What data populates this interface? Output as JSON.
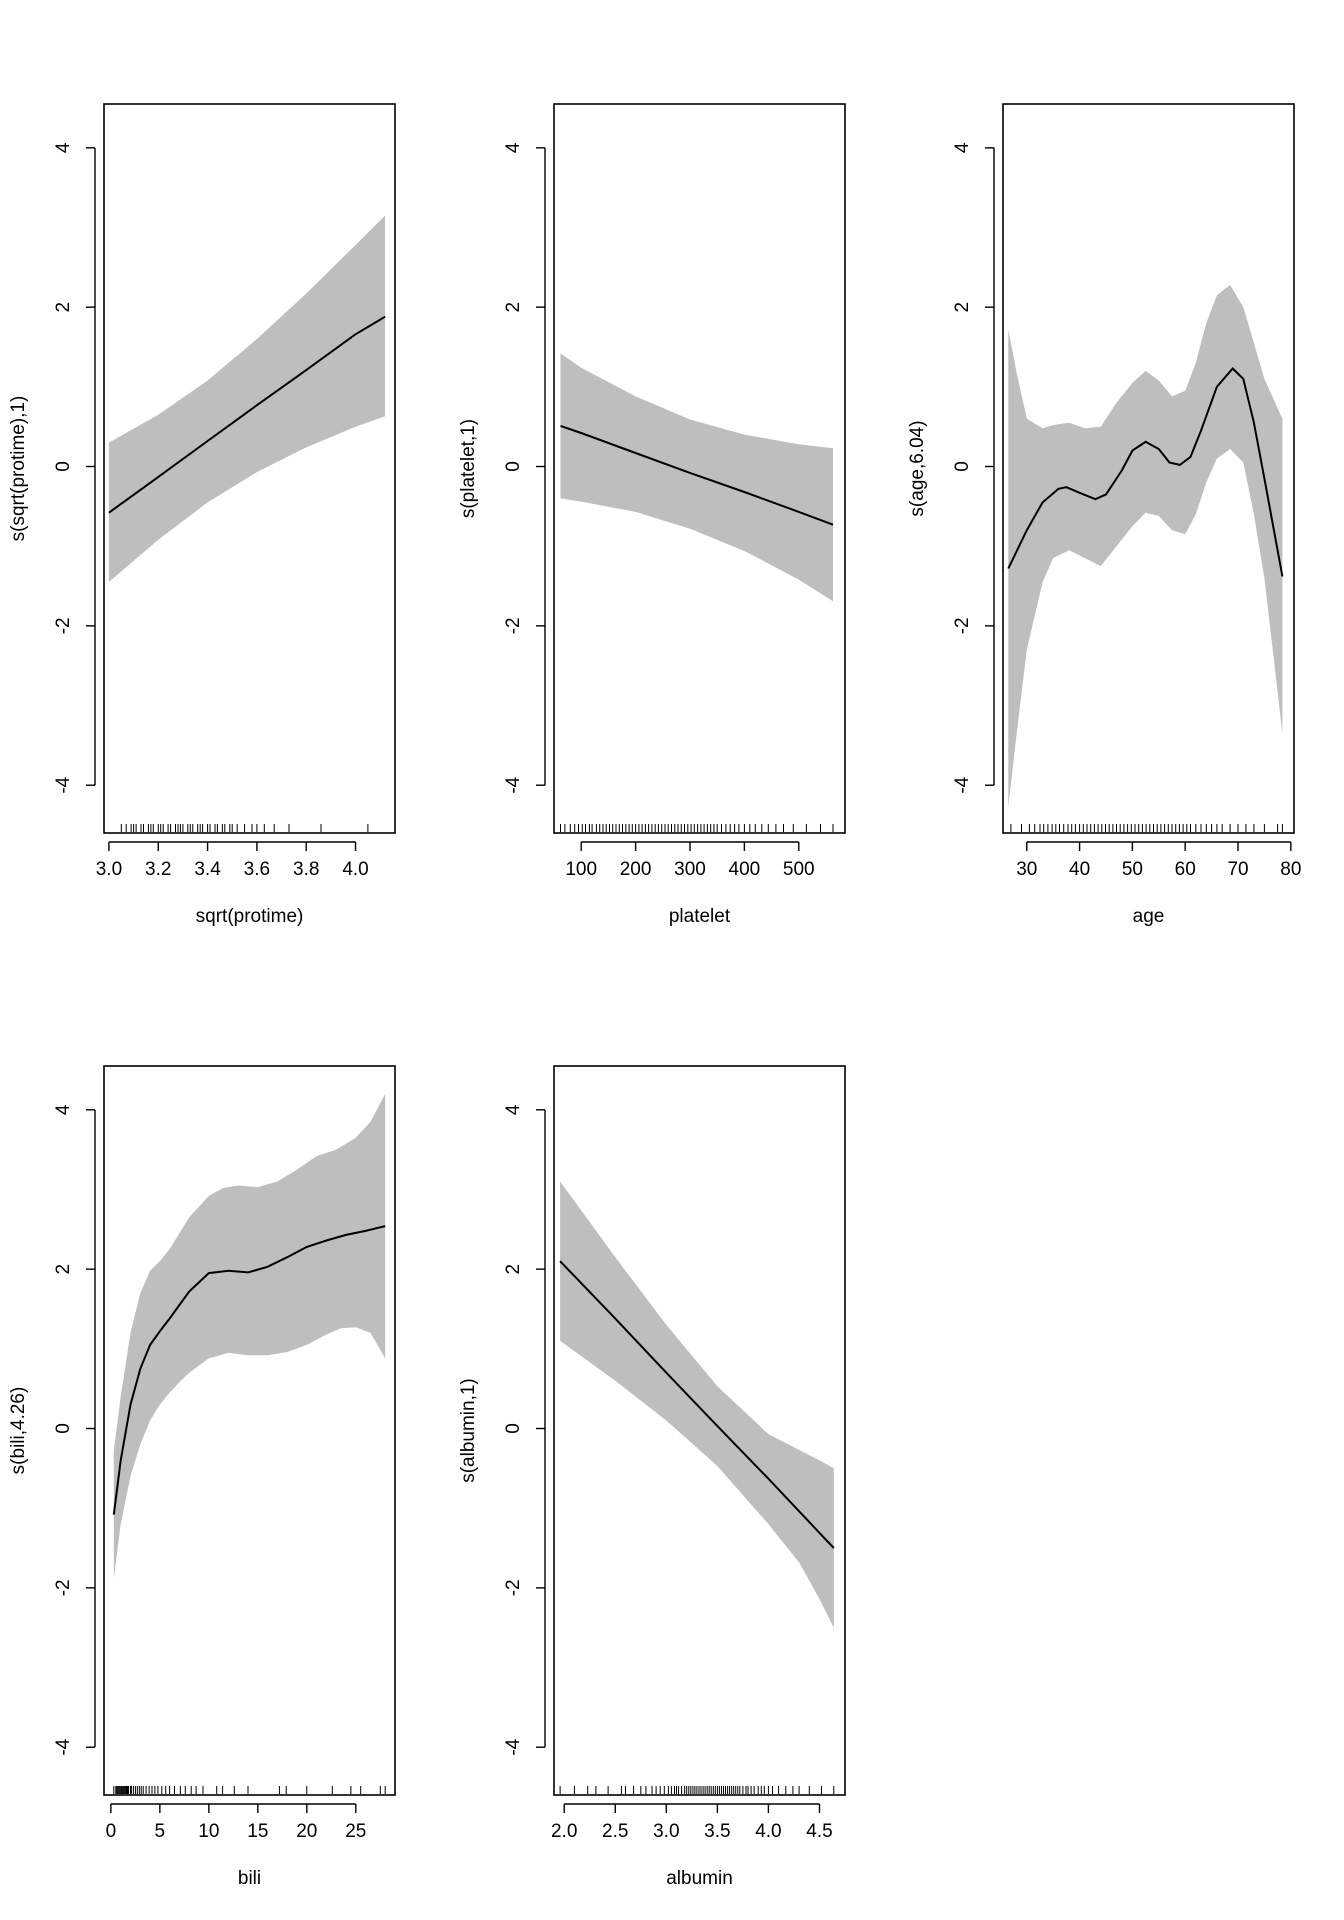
{
  "chart_data": [
    {
      "type": "line",
      "title": "",
      "xlabel": "sqrt(protime)",
      "ylabel": "s(sqrt(protime),1)",
      "xlim": [
        2.98,
        4.16
      ],
      "ylim": [
        -4.6,
        4.55
      ],
      "x_ticks": [
        3.0,
        3.2,
        3.4,
        3.6,
        3.8,
        4.0
      ],
      "x_tick_labels": [
        "3.0",
        "3.2",
        "3.4",
        "3.6",
        "3.8",
        "4.0"
      ],
      "y_ticks": [
        -4,
        -2,
        0,
        2,
        4
      ],
      "y_tick_labels": [
        "-4",
        "-2",
        "0",
        "2",
        "4"
      ],
      "series": [
        {
          "name": "fit",
          "x": [
            3.0,
            3.2,
            3.4,
            3.6,
            3.8,
            4.0,
            4.12
          ],
          "values": [
            -0.58,
            -0.13,
            0.32,
            0.77,
            1.21,
            1.66,
            1.88
          ]
        },
        {
          "name": "upper",
          "x": [
            3.0,
            3.2,
            3.4,
            3.6,
            3.8,
            4.0,
            4.12
          ],
          "values": [
            0.3,
            0.65,
            1.08,
            1.6,
            2.17,
            2.78,
            3.15
          ]
        },
        {
          "name": "lower",
          "x": [
            3.0,
            3.2,
            3.4,
            3.6,
            3.8,
            4.0,
            4.12
          ],
          "values": [
            -1.45,
            -0.92,
            -0.45,
            -0.07,
            0.24,
            0.5,
            0.63
          ]
        }
      ],
      "rug": [
        3.05,
        3.07,
        3.09,
        3.1,
        3.11,
        3.13,
        3.14,
        3.16,
        3.17,
        3.18,
        3.2,
        3.21,
        3.22,
        3.24,
        3.25,
        3.27,
        3.28,
        3.29,
        3.3,
        3.32,
        3.33,
        3.34,
        3.36,
        3.37,
        3.38,
        3.4,
        3.41,
        3.43,
        3.44,
        3.46,
        3.47,
        3.49,
        3.5,
        3.52,
        3.55,
        3.58,
        3.6,
        3.63,
        3.67,
        3.73,
        3.86,
        4.05
      ]
    },
    {
      "type": "line",
      "title": "",
      "xlabel": "platelet",
      "ylabel": "s(platelet,1)",
      "xlim": [
        50,
        585
      ],
      "ylim": [
        -4.6,
        4.55
      ],
      "x_ticks": [
        100,
        200,
        300,
        400,
        500
      ],
      "x_tick_labels": [
        "100",
        "200",
        "300",
        "400",
        "500"
      ],
      "y_ticks": [
        -4,
        -2,
        0,
        2,
        4
      ],
      "y_tick_labels": [
        "-4",
        "-2",
        "0",
        "2",
        "4"
      ],
      "series": [
        {
          "name": "fit",
          "x": [
            62,
            100,
            200,
            300,
            400,
            500,
            563
          ],
          "values": [
            0.51,
            0.42,
            0.17,
            -0.08,
            -0.32,
            -0.57,
            -0.73
          ]
        },
        {
          "name": "upper",
          "x": [
            62,
            100,
            200,
            300,
            400,
            500,
            563
          ],
          "values": [
            1.42,
            1.24,
            0.88,
            0.59,
            0.4,
            0.28,
            0.23
          ]
        },
        {
          "name": "lower",
          "x": [
            62,
            100,
            200,
            300,
            400,
            500,
            563
          ],
          "values": [
            -0.4,
            -0.44,
            -0.57,
            -0.78,
            -1.06,
            -1.42,
            -1.69
          ]
        }
      ],
      "rug": [
        62,
        70,
        80,
        88,
        95,
        102,
        108,
        115,
        120,
        128,
        134,
        140,
        146,
        152,
        158,
        164,
        170,
        176,
        182,
        188,
        194,
        200,
        206,
        212,
        218,
        224,
        230,
        236,
        242,
        248,
        254,
        260,
        266,
        272,
        278,
        284,
        290,
        296,
        302,
        308,
        314,
        320,
        326,
        332,
        338,
        344,
        350,
        358,
        366,
        374,
        382,
        390,
        400,
        410,
        420,
        432,
        444,
        458,
        472,
        490,
        514,
        540,
        563
      ]
    },
    {
      "type": "line",
      "title": "",
      "xlabel": "age",
      "ylabel": "s(age,6.04)",
      "xlim": [
        25.5,
        80.6
      ],
      "ylim": [
        -4.6,
        4.55
      ],
      "x_ticks": [
        30,
        40,
        50,
        60,
        70,
        80
      ],
      "x_tick_labels": [
        "30",
        "40",
        "50",
        "60",
        "70",
        "80"
      ],
      "y_ticks": [
        -4,
        -2,
        0,
        2,
        4
      ],
      "y_tick_labels": [
        "-4",
        "-2",
        "0",
        "2",
        "4"
      ],
      "series": [
        {
          "name": "fit",
          "x": [
            26.5,
            30,
            33,
            36,
            37.5,
            40,
            43,
            45,
            48,
            50,
            52.5,
            55,
            57,
            59,
            61,
            63,
            66,
            69,
            71,
            73,
            75,
            78.4
          ],
          "values": [
            -1.28,
            -0.8,
            -0.45,
            -0.28,
            -0.26,
            -0.33,
            -0.41,
            -0.35,
            -0.05,
            0.2,
            0.31,
            0.22,
            0.05,
            0.02,
            0.12,
            0.45,
            1.0,
            1.23,
            1.1,
            0.55,
            -0.15,
            -1.38
          ]
        },
        {
          "name": "upper",
          "x": [
            26.5,
            28,
            30,
            33,
            35,
            38,
            41,
            44,
            47,
            50,
            52.5,
            55,
            57.5,
            60,
            62,
            64,
            66,
            68.5,
            71,
            73,
            75,
            78.4
          ],
          "values": [
            1.72,
            1.2,
            0.6,
            0.48,
            0.52,
            0.55,
            0.48,
            0.5,
            0.8,
            1.05,
            1.2,
            1.08,
            0.88,
            0.95,
            1.3,
            1.8,
            2.15,
            2.28,
            2.0,
            1.55,
            1.1,
            0.6
          ]
        },
        {
          "name": "lower",
          "x": [
            26.5,
            28,
            30,
            33,
            35,
            38,
            41,
            44,
            47,
            50,
            52.5,
            55,
            57.5,
            60,
            62,
            64,
            66,
            68.5,
            71,
            73,
            75,
            78.4
          ],
          "values": [
            -4.27,
            -3.4,
            -2.3,
            -1.45,
            -1.15,
            -1.05,
            -1.15,
            -1.25,
            -1.0,
            -0.75,
            -0.58,
            -0.62,
            -0.8,
            -0.85,
            -0.6,
            -0.2,
            0.1,
            0.22,
            0.05,
            -0.6,
            -1.4,
            -3.35
          ]
        }
      ],
      "rug": [
        27,
        29,
        30.5,
        31.5,
        32.5,
        33.2,
        34,
        34.8,
        35.5,
        36.2,
        37,
        37.8,
        38.5,
        39.2,
        40,
        40.7,
        41.4,
        42.1,
        42.8,
        43.5,
        44.2,
        44.9,
        45.6,
        46.3,
        47,
        47.7,
        48.4,
        49.1,
        49.8,
        50.5,
        51.2,
        51.9,
        52.6,
        53.3,
        54,
        54.7,
        55.4,
        56.1,
        56.8,
        57.5,
        58.2,
        58.9,
        59.6,
        60.3,
        61,
        62,
        63,
        64,
        65,
        66,
        67,
        68.5,
        70,
        71.5,
        73,
        75,
        77.5,
        78.4
      ]
    },
    {
      "type": "line",
      "title": "",
      "xlabel": "bili",
      "ylabel": "s(bili,4.26)",
      "xlim": [
        -0.7,
        29.0
      ],
      "ylim": [
        -4.6,
        4.55
      ],
      "x_ticks": [
        0,
        5,
        10,
        15,
        20,
        25
      ],
      "x_tick_labels": [
        "0",
        "5",
        "10",
        "15",
        "20",
        "25"
      ],
      "y_ticks": [
        -4,
        -2,
        0,
        2,
        4
      ],
      "y_tick_labels": [
        "-4",
        "-2",
        "0",
        "2",
        "4"
      ],
      "series": [
        {
          "name": "fit",
          "x": [
            0.3,
            1,
            2,
            3,
            4,
            5,
            6,
            7,
            8,
            10,
            12,
            14,
            16,
            18,
            20,
            22,
            24,
            26,
            28
          ],
          "values": [
            -1.08,
            -0.4,
            0.3,
            0.75,
            1.05,
            1.22,
            1.38,
            1.55,
            1.72,
            1.95,
            1.98,
            1.96,
            2.03,
            2.15,
            2.28,
            2.36,
            2.43,
            2.48,
            2.54
          ]
        },
        {
          "name": "upper",
          "x": [
            0.3,
            1,
            2,
            3,
            4,
            5,
            6,
            7,
            8,
            10,
            11.5,
            13,
            15,
            17,
            19,
            21,
            23,
            25,
            26.5,
            28
          ],
          "values": [
            -0.28,
            0.4,
            1.2,
            1.7,
            1.98,
            2.1,
            2.25,
            2.45,
            2.65,
            2.92,
            3.02,
            3.05,
            3.03,
            3.1,
            3.25,
            3.42,
            3.5,
            3.65,
            3.85,
            4.2
          ]
        },
        {
          "name": "lower",
          "x": [
            0.3,
            1,
            2,
            3,
            4,
            5,
            6,
            7,
            8,
            10,
            12,
            14,
            16,
            18,
            20,
            22,
            23.5,
            25,
            26.5,
            28
          ],
          "values": [
            -1.88,
            -1.2,
            -0.6,
            -0.2,
            0.1,
            0.3,
            0.45,
            0.58,
            0.7,
            0.88,
            0.95,
            0.92,
            0.92,
            0.96,
            1.05,
            1.18,
            1.26,
            1.27,
            1.2,
            0.88
          ]
        }
      ],
      "rug": [
        0.3,
        0.5,
        0.6,
        0.7,
        0.8,
        0.9,
        1.0,
        1.1,
        1.2,
        1.3,
        1.4,
        1.5,
        1.6,
        1.7,
        1.8,
        2.0,
        2.1,
        2.3,
        2.5,
        2.7,
        2.9,
        3.1,
        3.3,
        3.6,
        3.9,
        4.2,
        4.5,
        4.8,
        5.2,
        5.6,
        6.0,
        6.5,
        7.1,
        7.6,
        8.2,
        8.7,
        9.4,
        10.8,
        11.4,
        12.6,
        14.0,
        17.2,
        17.9,
        20.0,
        22.6,
        24.5,
        25.5,
        27.5,
        28.0
      ]
    },
    {
      "type": "line",
      "title": "",
      "xlabel": "albumin",
      "ylabel": "s(albumin,1)",
      "xlim": [
        1.9,
        4.75
      ],
      "ylim": [
        -4.6,
        4.55
      ],
      "x_ticks": [
        2.0,
        2.5,
        3.0,
        3.5,
        4.0,
        4.5
      ],
      "x_tick_labels": [
        "2.0",
        "2.5",
        "3.0",
        "3.5",
        "4.0",
        "4.5"
      ],
      "y_ticks": [
        -4,
        -2,
        0,
        2,
        4
      ],
      "y_tick_labels": [
        "-4",
        "-2",
        "0",
        "2",
        "4"
      ],
      "series": [
        {
          "name": "fit",
          "x": [
            1.96,
            2.5,
            3.0,
            3.5,
            4.0,
            4.5,
            4.64
          ],
          "values": [
            2.1,
            1.38,
            0.7,
            0.03,
            -0.63,
            -1.31,
            -1.5
          ]
        },
        {
          "name": "upper",
          "x": [
            1.96,
            2.2,
            2.5,
            3.0,
            3.5,
            4.0,
            4.5,
            4.64
          ],
          "values": [
            3.1,
            2.68,
            2.15,
            1.3,
            0.53,
            -0.07,
            -0.4,
            -0.5
          ]
        },
        {
          "name": "lower",
          "x": [
            1.96,
            2.5,
            3.0,
            3.5,
            4.0,
            4.3,
            4.5,
            4.64
          ],
          "values": [
            1.1,
            0.6,
            0.1,
            -0.47,
            -1.2,
            -1.68,
            -2.14,
            -2.5
          ]
        }
      ],
      "rug": [
        1.96,
        2.1,
        2.23,
        2.31,
        2.43,
        2.56,
        2.6,
        2.68,
        2.75,
        2.8,
        2.86,
        2.9,
        2.94,
        2.98,
        3.02,
        3.05,
        3.08,
        3.1,
        3.12,
        3.15,
        3.18,
        3.2,
        3.22,
        3.24,
        3.26,
        3.28,
        3.3,
        3.32,
        3.34,
        3.36,
        3.38,
        3.4,
        3.42,
        3.44,
        3.46,
        3.48,
        3.5,
        3.52,
        3.54,
        3.56,
        3.58,
        3.6,
        3.62,
        3.64,
        3.66,
        3.68,
        3.7,
        3.72,
        3.75,
        3.78,
        3.8,
        3.83,
        3.86,
        3.9,
        3.93,
        3.96,
        4.0,
        4.04,
        4.1,
        4.17,
        4.24,
        4.3,
        4.4,
        4.52,
        4.64
      ]
    }
  ],
  "colors": {
    "band": "#bebebe",
    "line": "#000000",
    "frame": "#000000"
  }
}
